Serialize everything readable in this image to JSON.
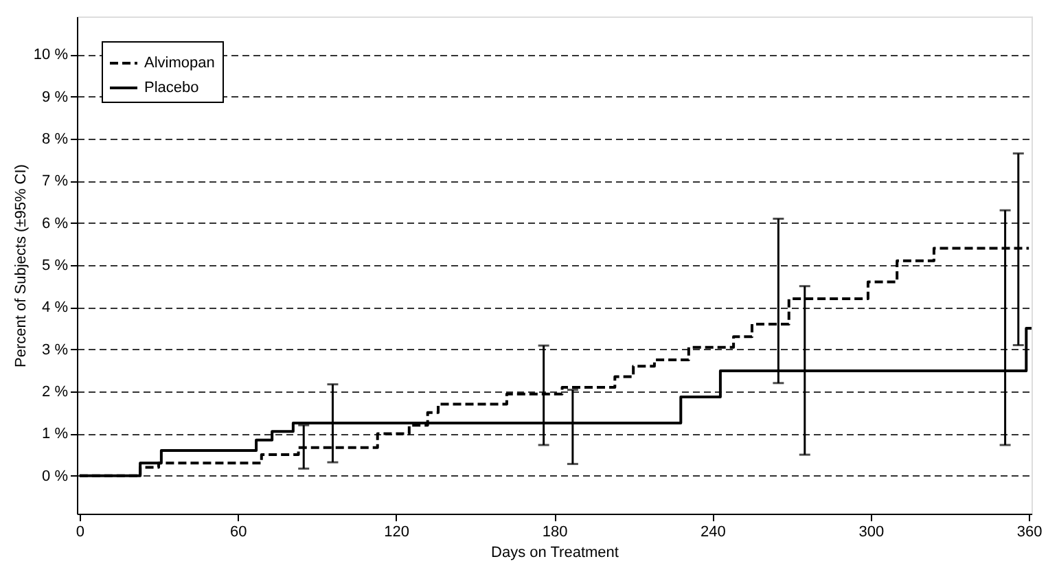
{
  "chart_data": {
    "type": "step",
    "xlabel": "Days on Treatment",
    "ylabel": "Percent of Subjects (±95% CI)",
    "xlim": [
      -1,
      361
    ],
    "xticks": [
      0,
      60,
      120,
      180,
      240,
      300,
      360
    ],
    "ylim": [
      -0.9,
      10.9
    ],
    "yticks": [
      {
        "value": 0,
        "label": "0 %"
      },
      {
        "value": 1,
        "label": "1 %"
      },
      {
        "value": 2,
        "label": "2 %"
      },
      {
        "value": 3,
        "label": "3 %"
      },
      {
        "value": 4,
        "label": "4 %"
      },
      {
        "value": 5,
        "label": "5 %"
      },
      {
        "value": 6,
        "label": "6 %"
      },
      {
        "value": 7,
        "label": "7 %"
      },
      {
        "value": 8,
        "label": "8 %"
      },
      {
        "value": 9,
        "label": "9 %"
      },
      {
        "value": 10,
        "label": "10 %"
      }
    ],
    "grid": "y",
    "legend": "top left",
    "series": [
      {
        "name": "Alvimopan",
        "color": "#000000",
        "line_style": "dashed",
        "x": [
          0,
          21,
          23,
          30,
          69,
          83,
          85,
          113,
          125,
          132,
          136,
          162,
          176,
          183,
          203,
          210,
          218,
          231,
          248,
          255,
          265,
          269,
          299,
          310,
          324,
          356,
          360
        ],
        "values": [
          0,
          0,
          0.2,
          0.3,
          0.5,
          0.67,
          0.67,
          1.0,
          1.2,
          1.5,
          1.7,
          1.94,
          1.94,
          2.1,
          2.35,
          2.6,
          2.75,
          3.05,
          3.3,
          3.6,
          3.6,
          4.2,
          4.6,
          5.1,
          5.4,
          5.4,
          5.4
        ],
        "errors": [
          null,
          null,
          null,
          null,
          null,
          null,
          [
            0.17,
            1.2
          ],
          null,
          null,
          null,
          null,
          null,
          [
            0.73,
            3.09
          ],
          null,
          null,
          null,
          null,
          null,
          null,
          null,
          [
            2.2,
            6.1
          ],
          null,
          null,
          null,
          null,
          [
            3.1,
            7.65
          ],
          null
        ]
      },
      {
        "name": "Placebo",
        "color": "#000000",
        "line_style": "solid",
        "x": [
          0,
          21,
          23,
          31,
          67,
          73,
          81,
          96,
          187,
          228,
          243,
          275,
          351,
          359,
          361
        ],
        "values": [
          0,
          0,
          0.3,
          0.6,
          0.85,
          1.05,
          1.25,
          1.25,
          1.25,
          1.87,
          2.49,
          2.49,
          2.49,
          3.5,
          3.5
        ],
        "errors": [
          null,
          null,
          null,
          null,
          null,
          null,
          null,
          [
            0.32,
            2.17
          ],
          [
            0.28,
            2.04
          ],
          null,
          null,
          [
            0.5,
            4.5
          ],
          [
            0.73,
            6.3
          ],
          null,
          null
        ]
      }
    ]
  }
}
